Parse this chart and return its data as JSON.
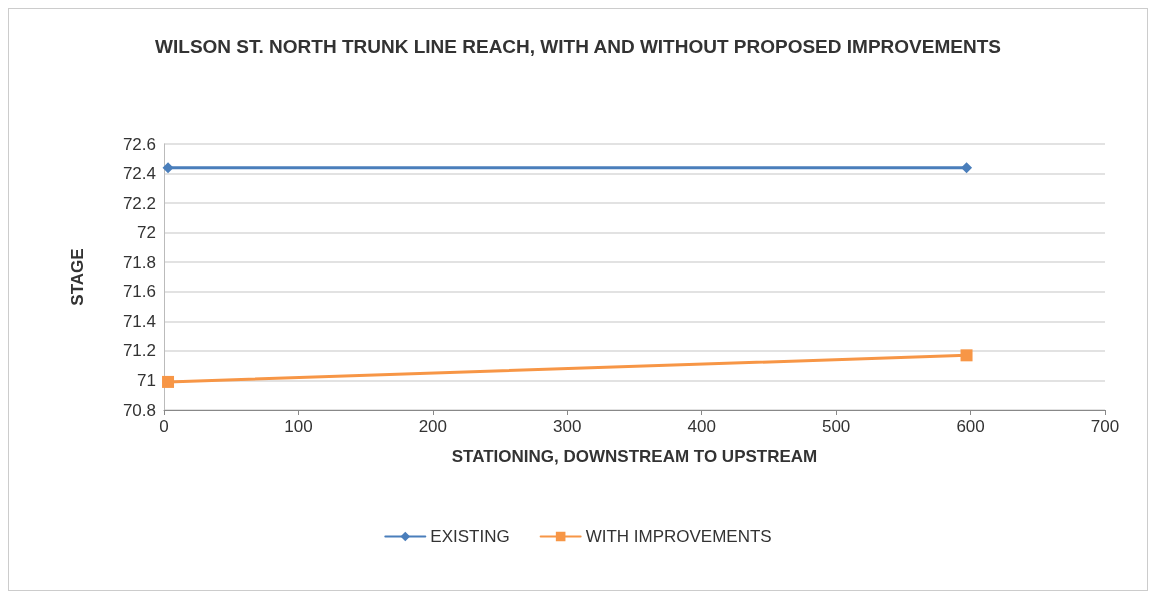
{
  "chart_data": {
    "type": "line",
    "title": "WILSON ST. NORTH TRUNK LINE REACH, WITH AND WITHOUT PROPOSED IMPROVEMENTS",
    "xlabel": "STATIONING, DOWNSTREAM TO UPSTREAM",
    "ylabel": "STAGE",
    "x": [
      3,
      597
    ],
    "series": [
      {
        "name": "EXISTING",
        "color": "#4a7ebb",
        "values": [
          72.44,
          72.44
        ],
        "marker": "diamond"
      },
      {
        "name": "WITH IMPROVEMENTS",
        "color": "#f79646",
        "values": [
          70.99,
          71.17
        ],
        "marker": "square"
      }
    ],
    "xlim": [
      0,
      700
    ],
    "xticks": [
      0,
      100,
      200,
      300,
      400,
      500,
      600,
      700
    ],
    "ylim": [
      70.8,
      72.6
    ],
    "yticks": [
      70.8,
      71,
      71.2,
      71.4,
      71.6,
      71.8,
      72,
      72.2,
      72.4,
      72.6
    ],
    "grid": "y",
    "legend": "bottom"
  }
}
